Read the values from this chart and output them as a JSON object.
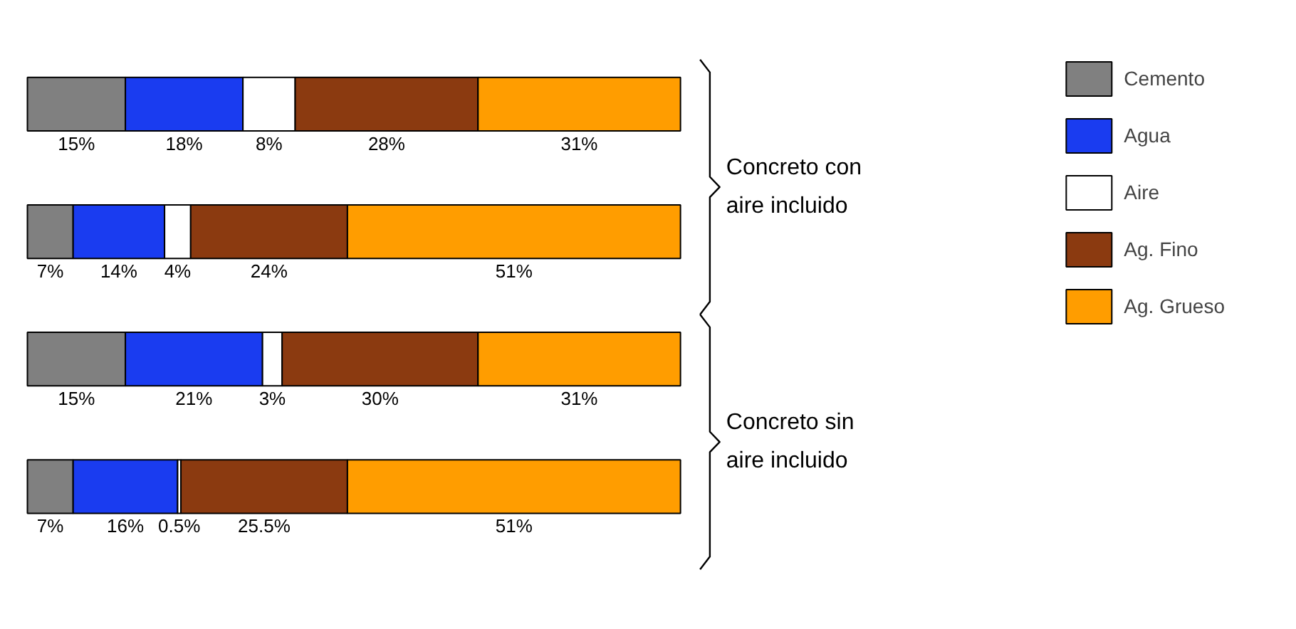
{
  "chart_data": {
    "type": "bar",
    "orientation": "horizontal",
    "stacked": true,
    "data_labels": true,
    "legend": "right",
    "grid": false,
    "categories": [
      null,
      null,
      null,
      null
    ],
    "series": [
      {
        "name": "Cemento",
        "color": "#808080",
        "values": [
          15,
          7,
          15,
          7
        ],
        "value_labels": [
          "15%",
          "7%",
          "15%",
          "7%"
        ]
      },
      {
        "name": "Agua",
        "color": "#1a3cf0",
        "values": [
          18,
          14,
          21,
          16
        ],
        "value_labels": [
          "18%",
          "14%",
          "21%",
          "16%"
        ]
      },
      {
        "name": "Aire",
        "color": "#ffffff",
        "values": [
          8,
          4,
          3,
          0.5
        ],
        "value_labels": [
          "8%",
          "4%",
          "3%",
          "0.5%"
        ]
      },
      {
        "name": "Ag. Fino",
        "color": "#8b3a10",
        "values": [
          28,
          24,
          30,
          25.5
        ],
        "value_labels": [
          "28%",
          "24%",
          "30%",
          "25.5%"
        ]
      },
      {
        "name": "Ag. Grueso",
        "color": "#ff9d00",
        "values": [
          31,
          51,
          31,
          51
        ],
        "value_labels": [
          "31%",
          "51%",
          "31%",
          "51%"
        ]
      }
    ],
    "annotations": [
      "Concreto con\naire incluido",
      "Concreto sin\naire incluido"
    ]
  }
}
